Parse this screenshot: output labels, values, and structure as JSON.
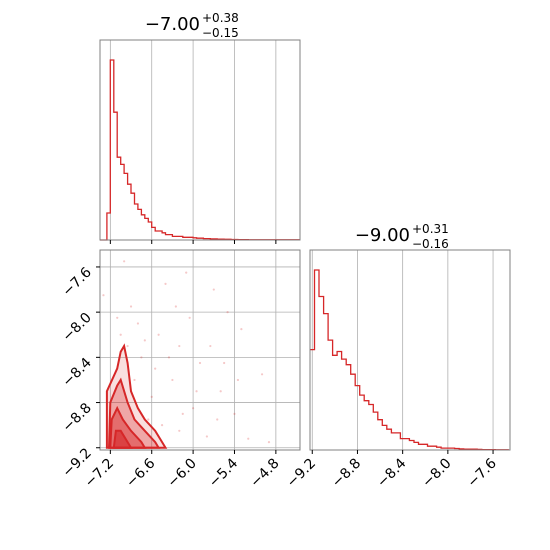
{
  "chart_data": {
    "type": "corner",
    "color": "#d62728",
    "grid": true,
    "parameters": [
      {
        "title": {
          "median": "−7.00",
          "plus": "+0.38",
          "minus": "−0.15"
        },
        "range": [
          -7.35,
          -4.45
        ],
        "ticks": [
          -7.2,
          -6.6,
          -6.0,
          -5.4,
          -4.8
        ],
        "tick_labels": [
          "−7.2",
          "−6.6",
          "−6.0",
          "−5.4",
          "−4.8"
        ]
      },
      {
        "title": {
          "median": "−9.00",
          "plus": "+0.31",
          "minus": "−0.16"
        },
        "range": [
          -9.22,
          -7.45
        ],
        "ticks": [
          -9.2,
          -8.8,
          -8.4,
          -8.0,
          -7.6
        ],
        "tick_labels": [
          "−9.2",
          "−8.8",
          "−8.4",
          "−8.0",
          "−7.6"
        ]
      }
    ],
    "hist_1": {
      "bin_edges_start": -7.35,
      "bin_width": 0.05,
      "counts": [
        0,
        0,
        0.15,
        1.0,
        0.71,
        0.46,
        0.42,
        0.37,
        0.31,
        0.26,
        0.2,
        0.17,
        0.14,
        0.12,
        0.1,
        0.07,
        0.05,
        0.05,
        0.04,
        0.03,
        0.03,
        0.02,
        0.02,
        0.02,
        0.015,
        0.015,
        0.015,
        0.012,
        0.01,
        0.01,
        0.008,
        0.008,
        0.006,
        0.006,
        0.005,
        0.005,
        0.004,
        0.004,
        0.003,
        0.003,
        0.002,
        0.002,
        0.002,
        0.001,
        0.001,
        0.001,
        0.001,
        0.001,
        0.001,
        0.001,
        0.001,
        0.001,
        0.001,
        0.001,
        0.001,
        0.001,
        0.001,
        0.001
      ]
    },
    "hist_2": {
      "bin_edges_start": -9.22,
      "bin_width": 0.04,
      "counts": [
        0.53,
        0.95,
        0.81,
        0.72,
        0.58,
        0.5,
        0.52,
        0.48,
        0.45,
        0.4,
        0.34,
        0.29,
        0.26,
        0.24,
        0.2,
        0.16,
        0.13,
        0.11,
        0.09,
        0.09,
        0.06,
        0.06,
        0.05,
        0.04,
        0.03,
        0.03,
        0.02,
        0.02,
        0.015,
        0.01,
        0.01,
        0.01,
        0.008,
        0.006,
        0.005,
        0.005,
        0.004,
        0.003,
        0.002,
        0.002,
        0.002,
        0.001,
        0.001,
        0.001
      ]
    },
    "contours": [
      [
        [
          -7.25,
          -9.2
        ],
        [
          -7.25,
          -8.7
        ],
        [
          -7.1,
          -8.5
        ],
        [
          -7.05,
          -8.35
        ],
        [
          -7.0,
          -8.3
        ],
        [
          -6.95,
          -8.45
        ],
        [
          -6.9,
          -8.7
        ],
        [
          -6.8,
          -8.85
        ],
        [
          -6.7,
          -8.95
        ],
        [
          -6.55,
          -9.05
        ],
        [
          -6.45,
          -9.15
        ],
        [
          -6.4,
          -9.2
        ]
      ],
      [
        [
          -7.22,
          -9.2
        ],
        [
          -7.2,
          -8.8
        ],
        [
          -7.1,
          -8.65
        ],
        [
          -7.05,
          -8.6
        ],
        [
          -6.95,
          -8.8
        ],
        [
          -6.85,
          -8.95
        ],
        [
          -6.7,
          -9.05
        ],
        [
          -6.55,
          -9.15
        ],
        [
          -6.5,
          -9.2
        ]
      ],
      [
        [
          -7.2,
          -9.2
        ],
        [
          -7.18,
          -8.95
        ],
        [
          -7.1,
          -8.85
        ],
        [
          -7.02,
          -8.95
        ],
        [
          -6.9,
          -9.05
        ],
        [
          -6.75,
          -9.15
        ],
        [
          -6.7,
          -9.2
        ]
      ],
      [
        [
          -7.15,
          -9.2
        ],
        [
          -7.12,
          -9.05
        ],
        [
          -7.05,
          -9.05
        ],
        [
          -6.95,
          -9.15
        ],
        [
          -6.9,
          -9.2
        ]
      ]
    ],
    "scatter_points": [
      [
        -7.0,
        -7.55
      ],
      [
        -6.4,
        -7.75
      ],
      [
        -5.7,
        -7.8
      ],
      [
        -6.1,
        -7.65
      ],
      [
        -7.3,
        -7.85
      ],
      [
        -5.5,
        -8.0
      ],
      [
        -6.8,
        -8.1
      ],
      [
        -6.2,
        -8.3
      ],
      [
        -5.3,
        -8.15
      ],
      [
        -5.0,
        -8.55
      ],
      [
        -6.9,
        -7.95
      ],
      [
        -6.55,
        -8.5
      ],
      [
        -5.9,
        -8.45
      ],
      [
        -6.3,
        -8.6
      ],
      [
        -5.6,
        -8.7
      ],
      [
        -7.05,
        -8.2
      ],
      [
        -6.6,
        -8.75
      ],
      [
        -6.0,
        -8.85
      ],
      [
        -5.4,
        -8.9
      ],
      [
        -6.45,
        -9.0
      ],
      [
        -6.2,
        -9.05
      ],
      [
        -5.8,
        -9.1
      ],
      [
        -5.2,
        -9.12
      ],
      [
        -4.9,
        -9.15
      ],
      [
        -6.7,
        -8.25
      ],
      [
        -6.05,
        -8.05
      ],
      [
        -5.75,
        -8.3
      ],
      [
        -6.35,
        -8.4
      ],
      [
        -6.75,
        -8.4
      ],
      [
        -5.95,
        -8.7
      ],
      [
        -6.5,
        -8.2
      ],
      [
        -6.15,
        -8.9
      ],
      [
        -5.55,
        -8.45
      ],
      [
        -6.85,
        -8.6
      ],
      [
        -7.1,
        -8.05
      ],
      [
        -6.65,
        -8.95
      ],
      [
        -5.35,
        -8.6
      ],
      [
        -6.25,
        -7.95
      ],
      [
        -5.65,
        -8.95
      ],
      [
        -6.95,
        -8.3
      ]
    ]
  }
}
